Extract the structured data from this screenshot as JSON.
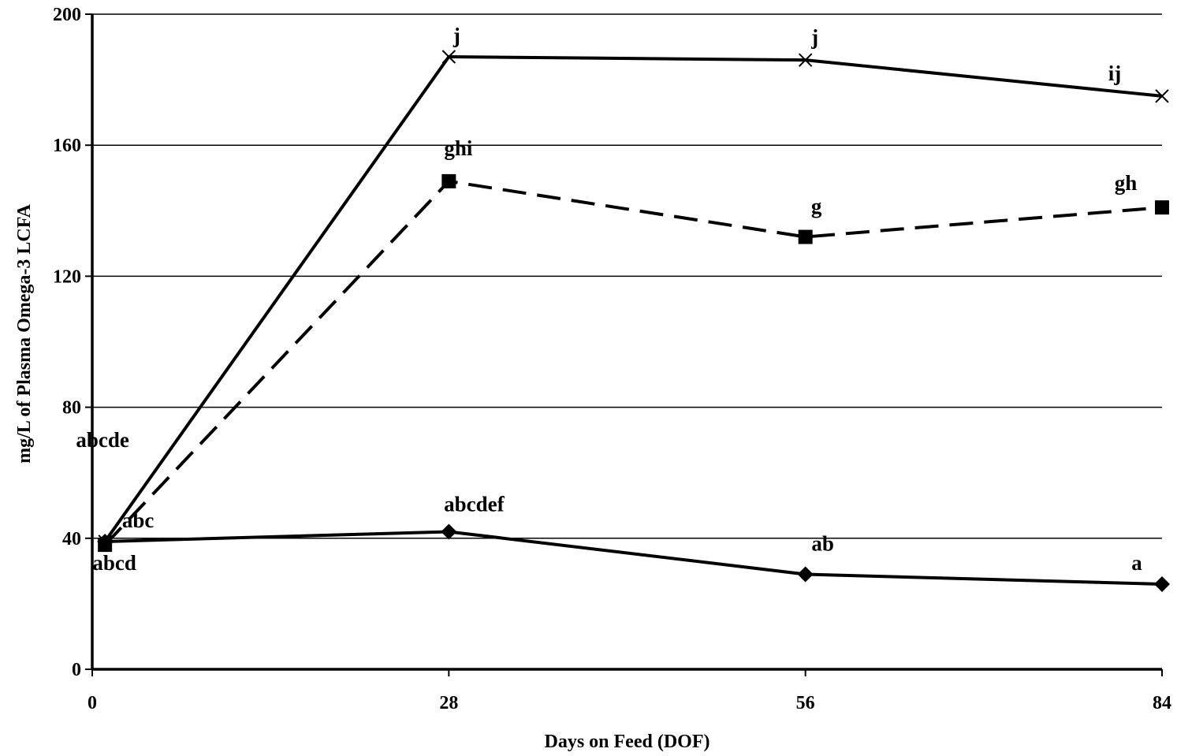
{
  "chart_data": {
    "type": "line",
    "title": "",
    "xlabel": "Days on Feed (DOF)",
    "ylabel": "mg/L of Plasma Omega-3 LCFA",
    "x": [
      1,
      28,
      56,
      84
    ],
    "xticks": [
      0,
      28,
      56,
      84
    ],
    "xtick_labels": [
      "0",
      "28",
      "56",
      "84"
    ],
    "xlim": [
      0,
      84
    ],
    "yticks": [
      0,
      40,
      80,
      120,
      160,
      200
    ],
    "ytick_labels": [
      "0",
      "40",
      "80",
      "120",
      "160",
      "200"
    ],
    "ylim": [
      0,
      200
    ],
    "grid": "horizontal",
    "legend": "none",
    "series": [
      {
        "marker": "diamond",
        "line_style": "solid",
        "color": "#000000",
        "values": [
          39,
          42,
          29,
          26
        ],
        "labels": [
          "abc",
          "abcdef",
          "ab",
          "a"
        ]
      },
      {
        "marker": "square",
        "line_style": "dashed",
        "color": "#000000",
        "values": [
          38,
          149,
          132,
          141
        ],
        "labels": [
          "abcd",
          "ghi",
          "g",
          "gh"
        ]
      },
      {
        "marker": "x",
        "line_style": "solid",
        "color": "#000000",
        "values": [
          39,
          187,
          186,
          175
        ],
        "labels": [
          "abcde",
          "j",
          "j",
          "ij"
        ]
      }
    ]
  }
}
